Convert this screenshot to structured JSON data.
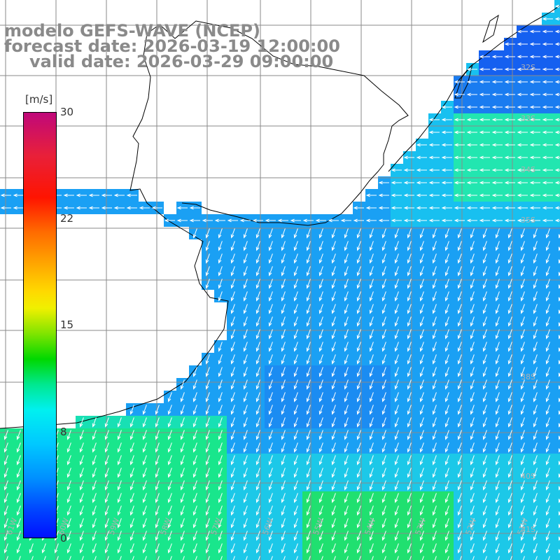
{
  "title": {
    "line1": "modelo GEFS-WAVE (NCEP)",
    "line2": "forecast date: 2026-03-19 12:00:00",
    "line3": "valid date: 2026-03-29 09:00:00"
  },
  "colorbar": {
    "units": "[m/s]",
    "ticks": [
      "30",
      "22",
      "15",
      "8",
      "0"
    ],
    "colors": [
      "#c0087a",
      "#ff1400",
      "#ff9a00",
      "#f0f000",
      "#00d800",
      "#00f0f0",
      "#0090ff",
      "#0010ff"
    ]
  },
  "grid": {
    "lat_labels": [
      "32S",
      "33S",
      "34S",
      "35S",
      "38S",
      "40S",
      "41S"
    ],
    "lon_labels": [
      "61W",
      "60W",
      "59W",
      "58W",
      "57W",
      "56W",
      "55W",
      "54W",
      "53W",
      "52W",
      "51W"
    ]
  },
  "colors": {
    "land": "#ffffff",
    "coast": "#000000",
    "grid_line": "#8a8a8a",
    "title": "#8a8a8a",
    "arrow": "#ffffff"
  }
}
